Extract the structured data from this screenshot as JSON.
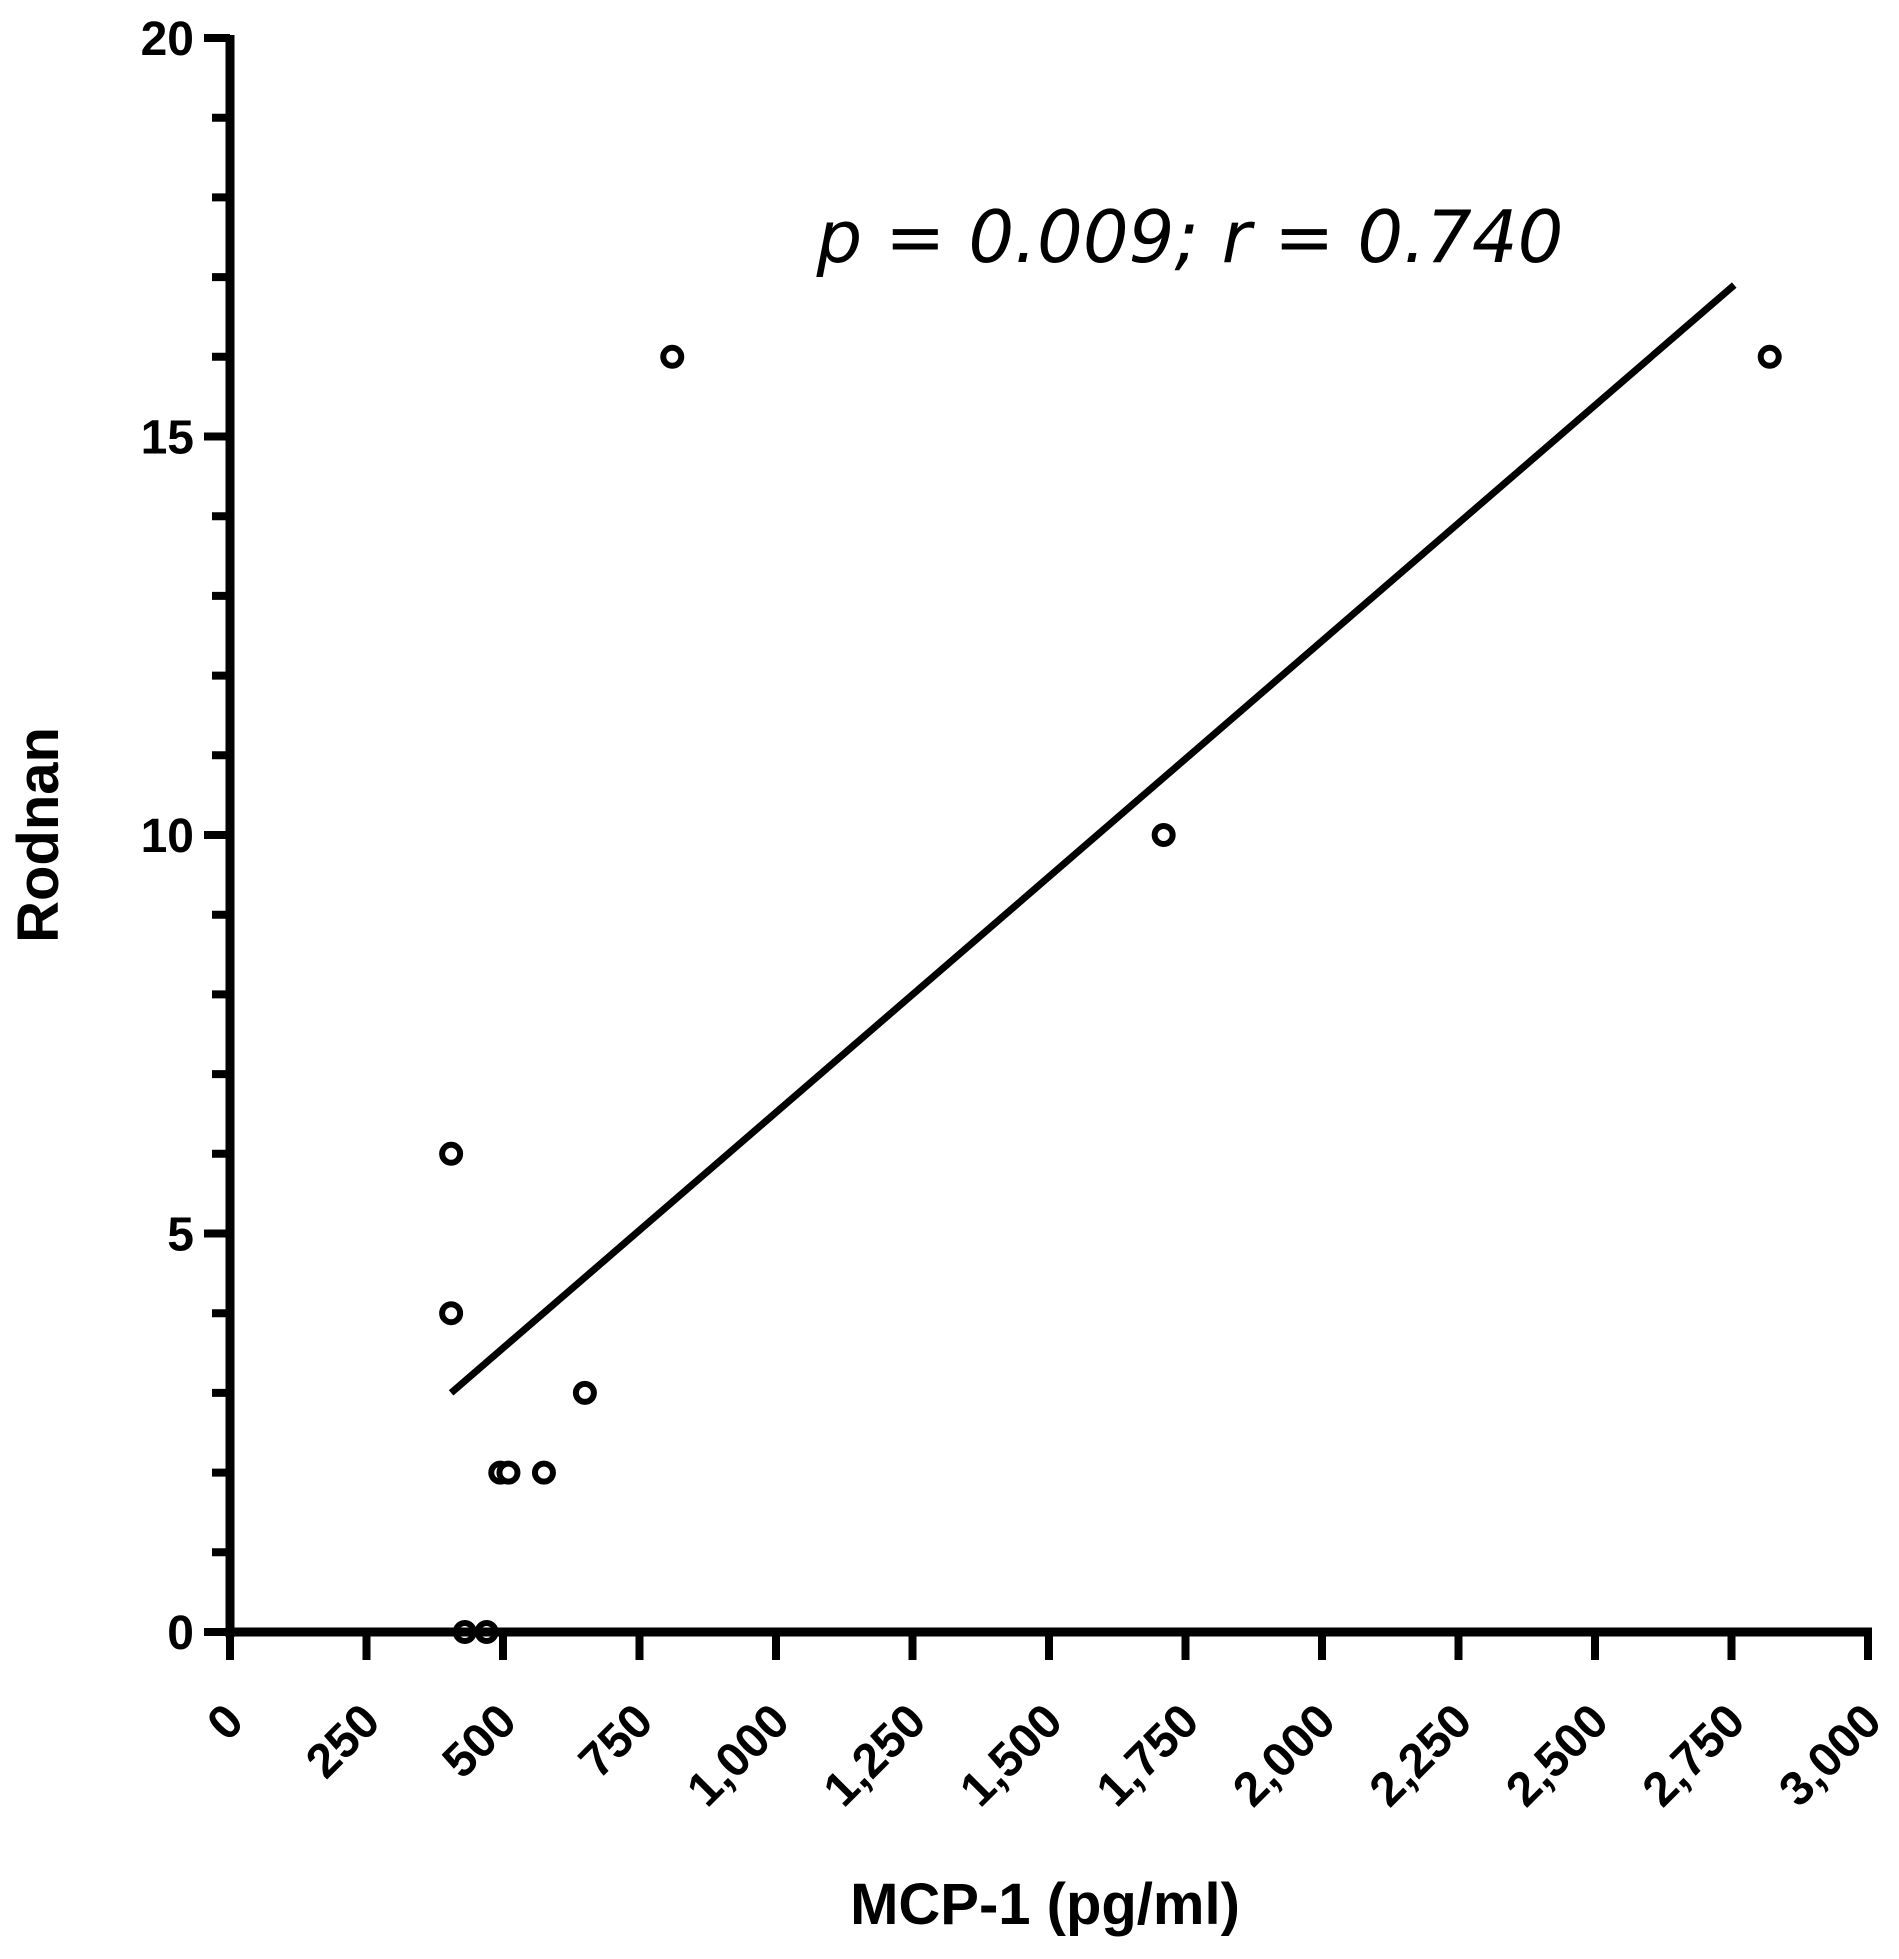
{
  "chart_data": {
    "type": "scatter",
    "title": "",
    "xlabel": "MCP-1 (pg/ml)",
    "ylabel": "Rodnan",
    "xlim": [
      0,
      3000
    ],
    "ylim": [
      0,
      20
    ],
    "x_ticks": [
      0,
      250,
      500,
      750,
      1000,
      1250,
      1500,
      1750,
      2000,
      2250,
      2500,
      2750,
      3000
    ],
    "x_tick_labels": [
      "0",
      "250",
      "500",
      "750",
      "1,000",
      "1,250",
      "1,500",
      "1,750",
      "2,000",
      "2,250",
      "2,500",
      "2,750",
      "3,000"
    ],
    "y_ticks": [
      0,
      5,
      10,
      15,
      20
    ],
    "y_tick_labels": [
      "0",
      "5",
      "10",
      "15",
      "20"
    ],
    "y_minor_step": 1,
    "grid": false,
    "annotation": "p = 0.009; r = 0.740",
    "series": [
      {
        "marker": "open-circle",
        "points": [
          {
            "x": 405,
            "y": 6
          },
          {
            "x": 405,
            "y": 4
          },
          {
            "x": 430,
            "y": 0
          },
          {
            "x": 470,
            "y": 0
          },
          {
            "x": 495,
            "y": 2
          },
          {
            "x": 510,
            "y": 2
          },
          {
            "x": 575,
            "y": 2
          },
          {
            "x": 650,
            "y": 3
          },
          {
            "x": 810,
            "y": 16
          },
          {
            "x": 1710,
            "y": 10
          },
          {
            "x": 2820,
            "y": 16
          }
        ]
      }
    ],
    "fit_line": {
      "x": [
        405,
        2755
      ],
      "y": [
        3.0,
        16.9
      ]
    }
  }
}
